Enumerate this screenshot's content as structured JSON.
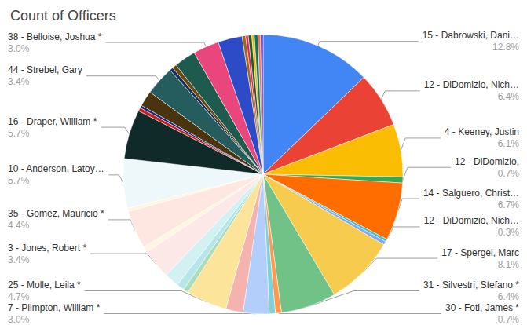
{
  "chart_data": {
    "type": "pie",
    "title": "Count of Officers",
    "data_labels": true,
    "categories": [
      "15 - Dabrowski, Dani…",
      "12 - DiDomizio, Nich…",
      "4 - Keeney, Justin",
      "12 - DiDomizio,",
      "14 - Salguero, Christ…",
      "12 - DiDomizio, Nich…",
      null,
      "17 - Spergel, Marc",
      "31 - Silvestri, Stefano *",
      "30 - Foti, James *",
      null,
      "7 - Plimpton, William *",
      null,
      "25 - Molle, Leila *",
      null,
      null,
      null,
      "3 - Jones, Robert *",
      null,
      "35 - Gomez, Mauricio *",
      null,
      "10 - Anderson, Latoy…",
      "16 - Draper, William *",
      null,
      null,
      null,
      "44 - Strebel, Gary",
      null,
      null,
      null,
      "38 - Belloise, Joshua *",
      null,
      null,
      null,
      null,
      null,
      null,
      null,
      null
    ],
    "values": [
      12.8,
      6.4,
      6.1,
      0.7,
      6.7,
      0.3,
      0.4,
      8.1,
      6.4,
      0.7,
      0.7,
      3.0,
      2.0,
      4.7,
      0.6,
      0.9,
      1.7,
      3.4,
      0.7,
      4.4,
      0.4,
      5.7,
      5.7,
      0.4,
      0.3,
      1.8,
      3.4,
      0.4,
      0.5,
      2.5,
      3.0,
      2.8,
      0.4,
      0.3,
      0.4,
      0.3,
      0.4,
      0.3,
      0.3
    ],
    "value_labels": [
      "12.8%",
      "6.4%",
      "6.1%",
      "0.7%",
      "6.7%",
      "0.3%",
      null,
      "8.1%",
      "6.4%",
      "0.7%",
      null,
      "3.0%",
      null,
      "4.7%",
      null,
      null,
      null,
      "3.4%",
      null,
      "4.4%",
      null,
      "5.7%",
      "5.7%",
      null,
      null,
      null,
      "3.4%",
      null,
      null,
      null,
      "3.0%",
      null,
      null,
      null,
      null,
      null,
      null,
      null,
      null
    ],
    "colors": [
      "#4285f4",
      "#ea4335",
      "#fbbc04",
      "#34a853",
      "#ff6d01",
      "#46bdc6",
      "#7baaf7",
      "#f7cb4d",
      "#71c287",
      "#ff994d",
      "#7ed1d7",
      "#b3cefb",
      "#f4b3ae",
      "#fde49b",
      "#aedcba",
      "#b5e6ea",
      "#d1f1f3",
      "#fce8e6",
      "#fef6e0",
      "#fde7e0",
      "#fef7e0",
      "#eef7fa",
      "#102a2a",
      "#c5221f",
      "#1a237e",
      "#4a3410",
      "#255c5e",
      "#1c2e5e",
      "#6b4a12",
      "#1e5b4f",
      "#e8467c",
      "#2d4ac7",
      "#9c6a12",
      "#e91e63",
      "#1b5e20",
      "#f4b400",
      "#00796b",
      "#ff7043",
      "#5e35b1"
    ]
  }
}
